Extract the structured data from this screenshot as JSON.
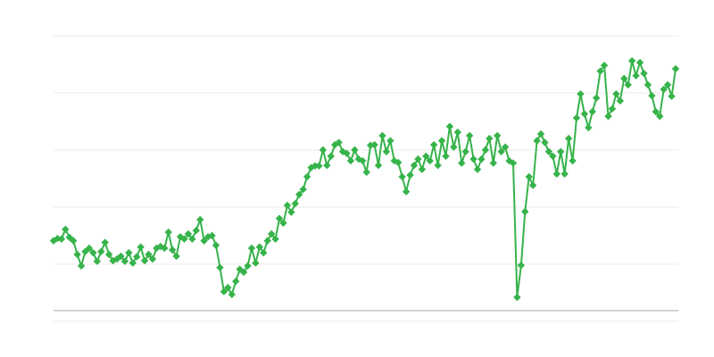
{
  "chart_data": {
    "type": "line",
    "title": "",
    "xlabel": "",
    "ylabel": "",
    "ylim": [
      0,
      5
    ],
    "grid": true,
    "legend": "none",
    "marker": "diamond",
    "color": "#36b34a",
    "gridline_values": [
      0,
      1,
      2,
      3,
      4,
      5
    ],
    "series": [
      {
        "values": [
          1.41,
          1.45,
          1.44,
          1.61,
          1.47,
          1.41,
          1.17,
          0.97,
          1.22,
          1.28,
          1.2,
          1.05,
          1.22,
          1.38,
          1.17,
          1.06,
          1.09,
          1.14,
          1.05,
          1.2,
          1.02,
          1.13,
          1.3,
          1.06,
          1.17,
          1.09,
          1.28,
          1.31,
          1.28,
          1.56,
          1.25,
          1.14,
          1.48,
          1.44,
          1.53,
          1.44,
          1.59,
          1.78,
          1.41,
          1.48,
          1.5,
          1.33,
          0.94,
          0.52,
          0.59,
          0.47,
          0.7,
          0.91,
          0.86,
          0.97,
          1.28,
          1.02,
          1.3,
          1.2,
          1.41,
          1.53,
          1.44,
          1.8,
          1.72,
          2.03,
          1.91,
          2.06,
          2.22,
          2.31,
          2.53,
          2.69,
          2.72,
          2.72,
          3.0,
          2.73,
          2.89,
          3.09,
          3.13,
          2.97,
          2.94,
          2.81,
          3.0,
          2.84,
          2.81,
          2.61,
          3.08,
          3.09,
          2.73,
          3.25,
          2.97,
          3.16,
          2.81,
          2.78,
          2.53,
          2.27,
          2.56,
          2.73,
          2.84,
          2.66,
          2.89,
          2.81,
          3.09,
          2.73,
          3.16,
          2.89,
          3.41,
          3.05,
          3.31,
          2.77,
          2.97,
          3.25,
          2.84,
          2.66,
          2.84,
          3.0,
          3.2,
          2.77,
          3.25,
          2.97,
          3.05,
          2.81,
          2.77,
          0.42,
          0.98,
          1.92,
          2.53,
          2.38,
          3.16,
          3.28,
          3.13,
          2.97,
          2.89,
          2.58,
          2.97,
          2.58,
          3.2,
          2.81,
          3.56,
          3.98,
          3.63,
          3.39,
          3.67,
          3.91,
          4.38,
          4.48,
          3.59,
          3.72,
          3.98,
          3.86,
          4.25,
          4.14,
          4.56,
          4.3,
          4.53,
          4.34,
          4.14,
          3.95,
          3.67,
          3.59,
          4.06,
          4.14,
          3.94,
          4.42
        ]
      }
    ]
  }
}
